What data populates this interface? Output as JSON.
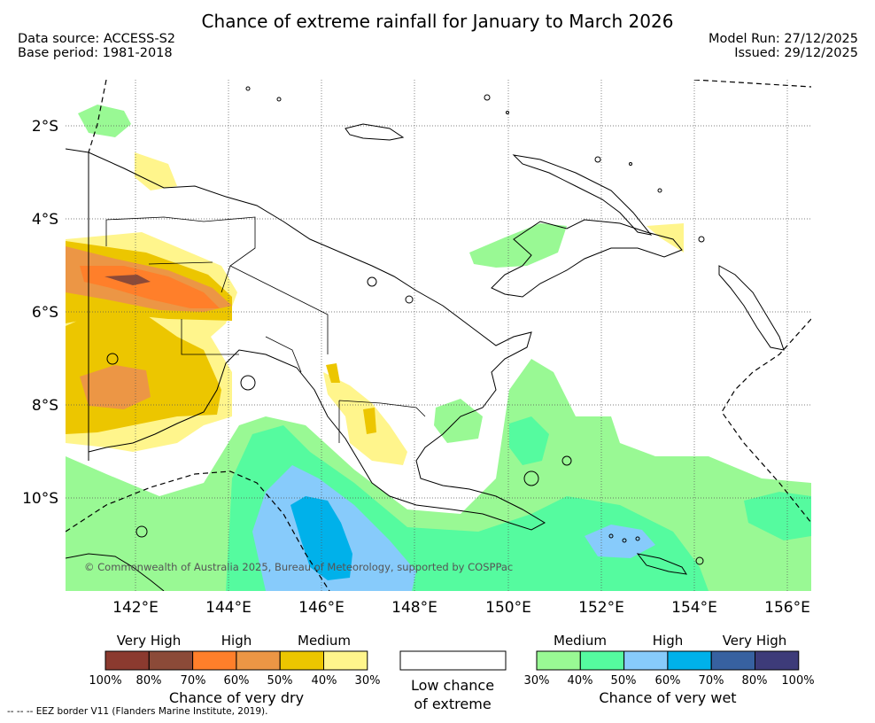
{
  "title": "Chance of extreme rainfall for January to March 2026",
  "meta": {
    "data_source": "Data source: ACCESS-S2",
    "base_period": "Base period: 1981-2018",
    "model_run": "Model Run: 27/12/2025",
    "issued": "Issued: 29/12/2025"
  },
  "map": {
    "lat_labels": [
      "2°S",
      "4°S",
      "6°S",
      "8°S",
      "10°S"
    ],
    "lon_labels": [
      "142°E",
      "144°E",
      "146°E",
      "148°E",
      "150°E",
      "152°E",
      "154°E",
      "156°E"
    ],
    "copyright": "© Commonwealth of Australia 2025, Bureau of Meteorology, supported by COSPPac",
    "grid": "dotted"
  },
  "legend": {
    "dry": {
      "categories": [
        "Very High",
        "High",
        "Medium"
      ],
      "colors": [
        "#8b3a2f",
        "#8b4a38",
        "#ff7f2a",
        "#ec9645",
        "#ecc600",
        "#fff58c"
      ],
      "ticks": [
        "100%",
        "80%",
        "70%",
        "60%",
        "50%",
        "40%",
        "30%"
      ],
      "caption": "Chance of very dry"
    },
    "none": {
      "caption_line1": "Low chance",
      "caption_line2": "of extreme"
    },
    "wet": {
      "categories": [
        "Medium",
        "High",
        "Very High"
      ],
      "colors": [
        "#99f994",
        "#55fb9f",
        "#87cbfb",
        "#00b1ea",
        "#3761a0",
        "#3d3b79"
      ],
      "ticks": [
        "30%",
        "40%",
        "50%",
        "60%",
        "70%",
        "80%",
        "100%"
      ],
      "caption": "Chance of very wet"
    }
  },
  "footnote": "--  --  -- EEZ border V11 (Flanders Marine Institute, 2019)."
}
